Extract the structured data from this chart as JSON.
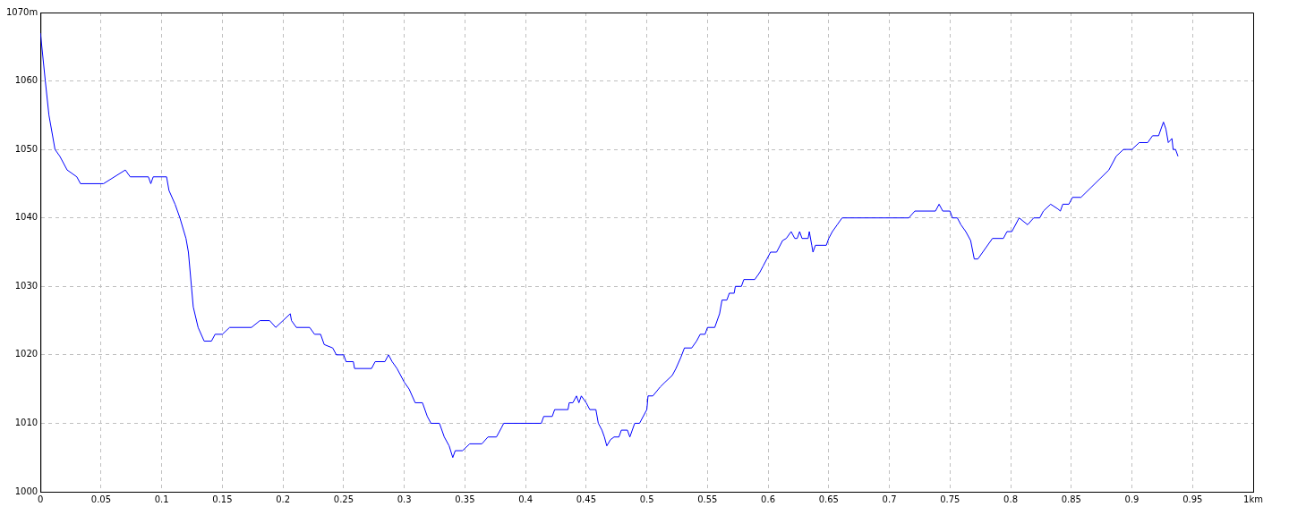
{
  "chart_data": {
    "type": "line",
    "color": "#0000ff",
    "line_style": "solid",
    "grid": true,
    "xlim": [
      0,
      1
    ],
    "ylim": [
      1000,
      1070
    ],
    "xticks": [
      0,
      0.05,
      0.1,
      0.15,
      0.2,
      0.25,
      0.3,
      0.35,
      0.4,
      0.45,
      0.5,
      0.55,
      0.6,
      0.65,
      0.7,
      0.75,
      0.8,
      0.85,
      0.9,
      0.95,
      {
        "value": 1,
        "label": "1km"
      }
    ],
    "yticks": [
      1000,
      1010,
      1020,
      1030,
      1040,
      1050,
      1060,
      {
        "value": 1070,
        "label": "1070m"
      }
    ],
    "x": [
      0,
      0.004,
      0.007,
      0.012,
      0.016,
      0.022,
      0.03,
      0.033,
      0.052,
      0.07,
      0.074,
      0.089,
      0.091,
      0.093,
      0.104,
      0.106,
      0.111,
      0.115,
      0.12,
      0.122,
      0.126,
      0.13,
      0.135,
      0.141,
      0.144,
      0.15,
      0.156,
      0.174,
      0.181,
      0.189,
      0.194,
      0.2,
      0.206,
      0.207,
      0.211,
      0.222,
      0.226,
      0.231,
      0.234,
      0.241,
      0.244,
      0.25,
      0.252,
      0.258,
      0.259,
      0.273,
      0.276,
      0.284,
      0.287,
      0.29,
      0.294,
      0.3,
      0.304,
      0.309,
      0.315,
      0.319,
      0.322,
      0.329,
      0.333,
      0.337,
      0.34,
      0.342,
      0.348,
      0.354,
      0.364,
      0.369,
      0.376,
      0.38,
      0.382,
      0.413,
      0.415,
      0.422,
      0.424,
      0.435,
      0.436,
      0.439,
      0.442,
      0.444,
      0.446,
      0.45,
      0.453,
      0.458,
      0.46,
      0.463,
      0.465,
      0.467,
      0.47,
      0.473,
      0.477,
      0.479,
      0.484,
      0.486,
      0.49,
      0.494,
      0.5,
      0.501,
      0.505,
      0.511,
      0.515,
      0.521,
      0.524,
      0.528,
      0.531,
      0.537,
      0.541,
      0.544,
      0.548,
      0.55,
      0.556,
      0.56,
      0.562,
      0.566,
      0.568,
      0.572,
      0.573,
      0.578,
      0.58,
      0.589,
      0.593,
      0.596,
      0.599,
      0.602,
      0.607,
      0.612,
      0.615,
      0.619,
      0.622,
      0.624,
      0.626,
      0.628,
      0.633,
      0.634,
      0.636,
      0.637,
      0.639,
      0.648,
      0.65,
      0.653,
      0.657,
      0.661,
      0.716,
      0.721,
      0.738,
      0.741,
      0.744,
      0.75,
      0.752,
      0.756,
      0.759,
      0.763,
      0.767,
      0.77,
      0.773,
      0.785,
      0.794,
      0.797,
      0.801,
      0.807,
      0.814,
      0.819,
      0.824,
      0.827,
      0.833,
      0.839,
      0.841,
      0.843,
      0.848,
      0.851,
      0.858,
      0.881,
      0.887,
      0.893,
      0.9,
      0.906,
      0.913,
      0.917,
      0.922,
      0.926,
      0.928,
      0.93,
      0.933,
      0.934,
      0.936,
      0.938
    ],
    "values": [
      1067,
      1060,
      1055,
      1050,
      1049,
      1047,
      1046,
      1045,
      1045,
      1047,
      1046,
      1046,
      1045,
      1046,
      1046,
      1044,
      1042,
      1040,
      1037,
      1035,
      1027,
      1024,
      1022,
      1022,
      1023,
      1023,
      1024,
      1024,
      1025,
      1025,
      1024,
      1025,
      1026,
      1025,
      1024,
      1024,
      1023,
      1023,
      1021.5,
      1021,
      1020,
      1020,
      1019,
      1019,
      1018,
      1018,
      1019,
      1019,
      1020,
      1019,
      1018,
      1016,
      1015,
      1013,
      1013,
      1011,
      1010,
      1010,
      1008,
      1006.7,
      1005,
      1006,
      1006,
      1007,
      1007,
      1008,
      1008,
      1009.3,
      1010,
      1010,
      1011,
      1011,
      1012,
      1012,
      1013,
      1013,
      1014,
      1013,
      1014,
      1013,
      1012,
      1012,
      1010,
      1009,
      1008,
      1006.7,
      1007.6,
      1008,
      1008,
      1009,
      1009,
      1008,
      1010,
      1010,
      1012,
      1014,
      1014,
      1015.3,
      1016,
      1017,
      1018,
      1019.6,
      1021,
      1021,
      1022,
      1023,
      1023,
      1024,
      1024,
      1026,
      1028,
      1028,
      1029,
      1029,
      1030,
      1030,
      1031,
      1031,
      1032,
      1033,
      1034,
      1035,
      1035,
      1036.7,
      1037,
      1038,
      1037,
      1037,
      1038,
      1037,
      1037,
      1038,
      1036,
      1035,
      1036,
      1036,
      1037,
      1038,
      1039,
      1040,
      1040,
      1041,
      1041,
      1042,
      1041,
      1041,
      1040,
      1040,
      1039,
      1038,
      1036.7,
      1034,
      1034,
      1037,
      1037,
      1038,
      1038,
      1040,
      1039,
      1040,
      1040,
      1041,
      1042,
      1041.3,
      1041,
      1042,
      1042,
      1043,
      1043,
      1047,
      1049,
      1050,
      1050,
      1051,
      1051,
      1052,
      1052,
      1054,
      1053,
      1051,
      1051.6,
      1050,
      1050,
      1049
    ]
  }
}
